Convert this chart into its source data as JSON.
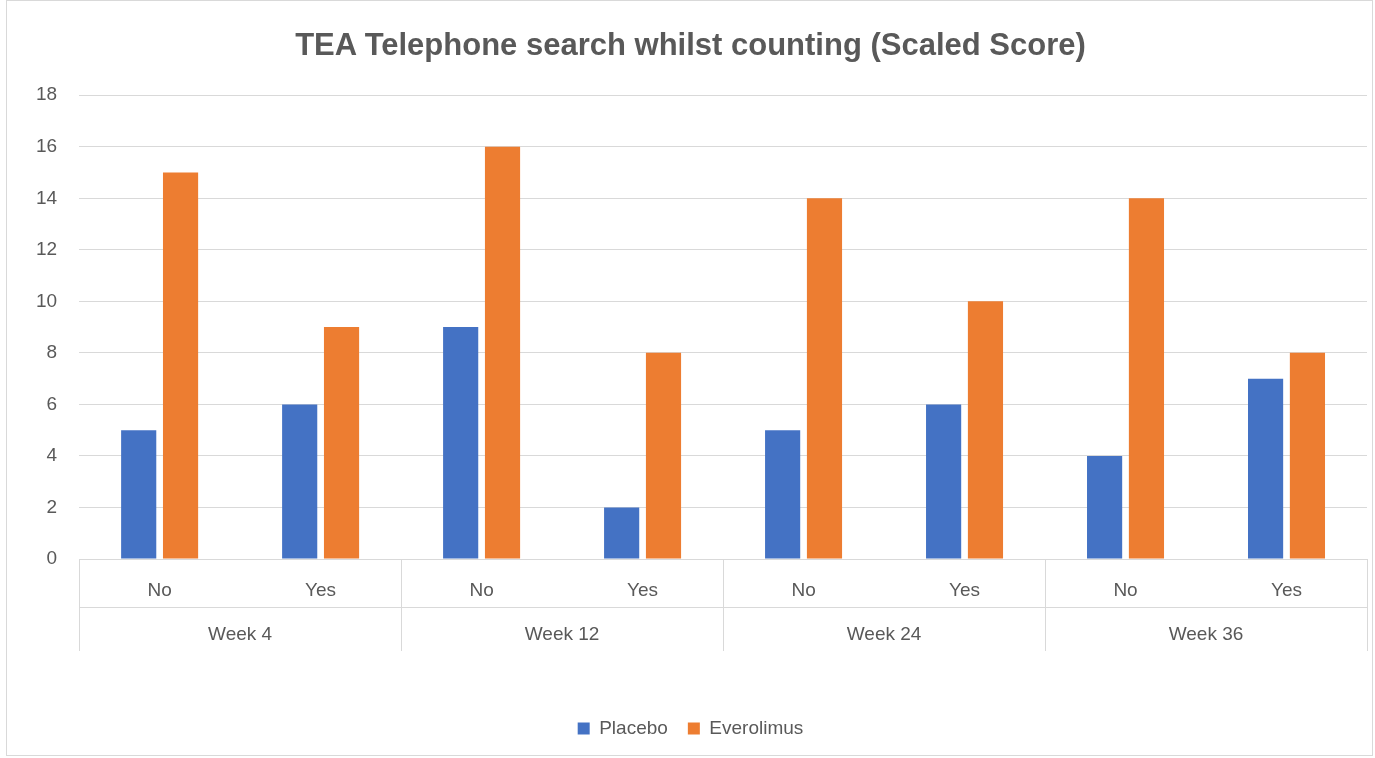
{
  "chart_data": {
    "type": "bar",
    "title": "TEA Telephone search whilst counting (Scaled Score)",
    "categories": [
      "No",
      "Yes",
      "No",
      "Yes",
      "No",
      "Yes",
      "No",
      "Yes"
    ],
    "series": [
      {
        "name": "Placebo",
        "color": "#4472c4",
        "values": [
          5,
          6,
          9,
          2,
          5,
          6,
          4,
          7
        ]
      },
      {
        "name": "Everolimus",
        "color": "#ed7d31",
        "values": [
          15,
          9,
          16,
          8,
          14,
          10,
          14,
          8
        ]
      }
    ],
    "annotations": [
      "Week 4",
      "Week 12",
      "Week 24",
      "Week 36"
    ],
    "ylim": [
      0,
      18
    ],
    "yticks": [
      0,
      2,
      4,
      6,
      8,
      10,
      12,
      14,
      16,
      18
    ],
    "grid": "y",
    "legend": "bottom"
  }
}
